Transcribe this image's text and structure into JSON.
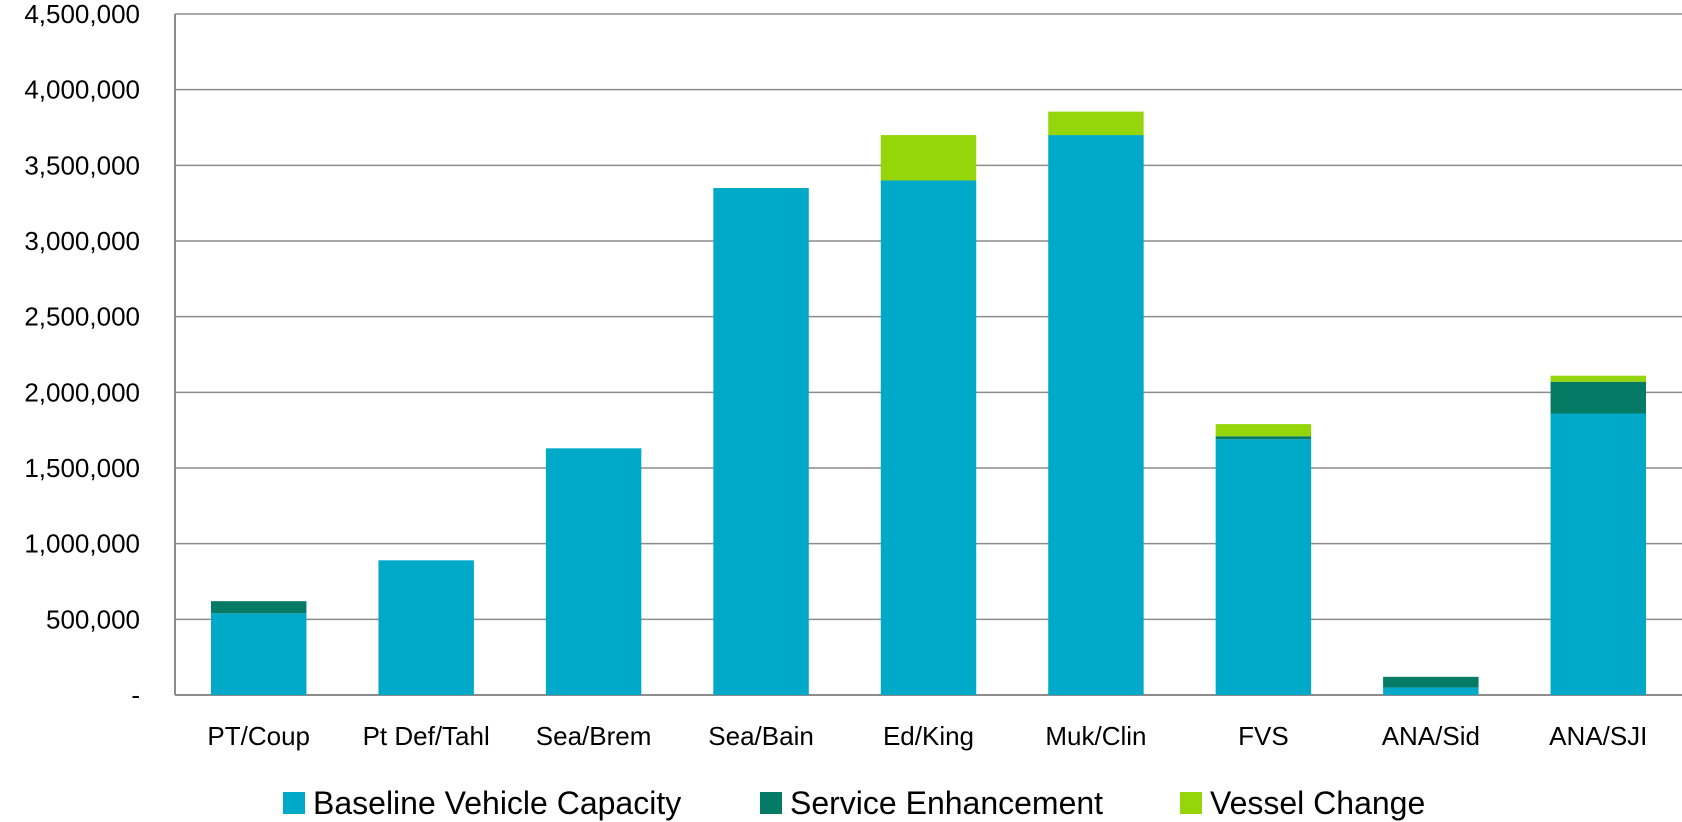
{
  "chart_data": {
    "type": "bar",
    "stacked": true,
    "title": "",
    "xlabel": "",
    "ylabel": "",
    "ylim": [
      0,
      4500000
    ],
    "yticks": [
      {
        "value": 0,
        "label": "-"
      },
      {
        "value": 500000,
        "label": "500,000"
      },
      {
        "value": 1000000,
        "label": "1,000,000"
      },
      {
        "value": 1500000,
        "label": "1,500,000"
      },
      {
        "value": 2000000,
        "label": "2,000,000"
      },
      {
        "value": 2500000,
        "label": "2,500,000"
      },
      {
        "value": 3000000,
        "label": "3,000,000"
      },
      {
        "value": 3500000,
        "label": "3,500,000"
      },
      {
        "value": 4000000,
        "label": "4,000,000"
      },
      {
        "value": 4500000,
        "label": "4,500,000"
      }
    ],
    "grid": true,
    "legend_position": "bottom",
    "categories": [
      "PT/Coup",
      "Pt Def/Tahl",
      "Sea/Brem",
      "Sea/Bain",
      "Ed/King",
      "Muk/Clin",
      "FVS",
      "ANA/Sid",
      "ANA/SJI"
    ],
    "series": [
      {
        "name": "Baseline Vehicle Capacity",
        "color": "#00a9c7",
        "values": [
          540000,
          890000,
          1630000,
          3350000,
          3400000,
          3700000,
          1690000,
          50000,
          1860000
        ]
      },
      {
        "name": "Service Enhancement",
        "color": "#057b66",
        "values": [
          80000,
          0,
          0,
          0,
          0,
          0,
          20000,
          70000,
          210000
        ]
      },
      {
        "name": "Vessel Change",
        "color": "#94d60a",
        "values": [
          0,
          0,
          0,
          0,
          300000,
          155000,
          80000,
          0,
          40000
        ]
      }
    ]
  }
}
